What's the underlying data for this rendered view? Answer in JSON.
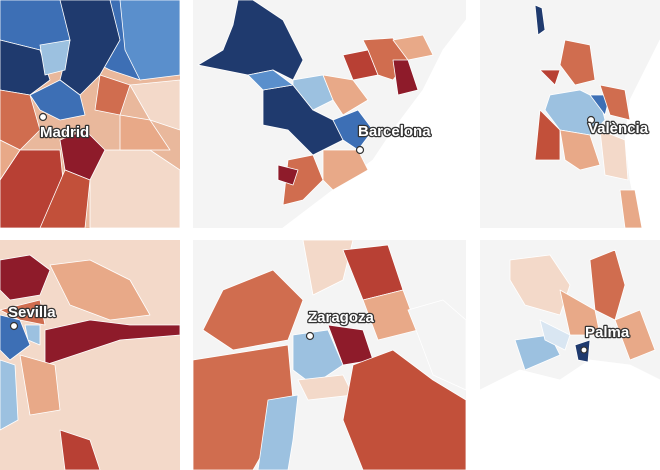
{
  "maps": [
    {
      "label": "Madrid"
    },
    {
      "label": "Barcelona"
    },
    {
      "label": "València"
    },
    {
      "label": "Sevilla"
    },
    {
      "label": "Zaragoza"
    },
    {
      "label": "Palma"
    }
  ]
}
